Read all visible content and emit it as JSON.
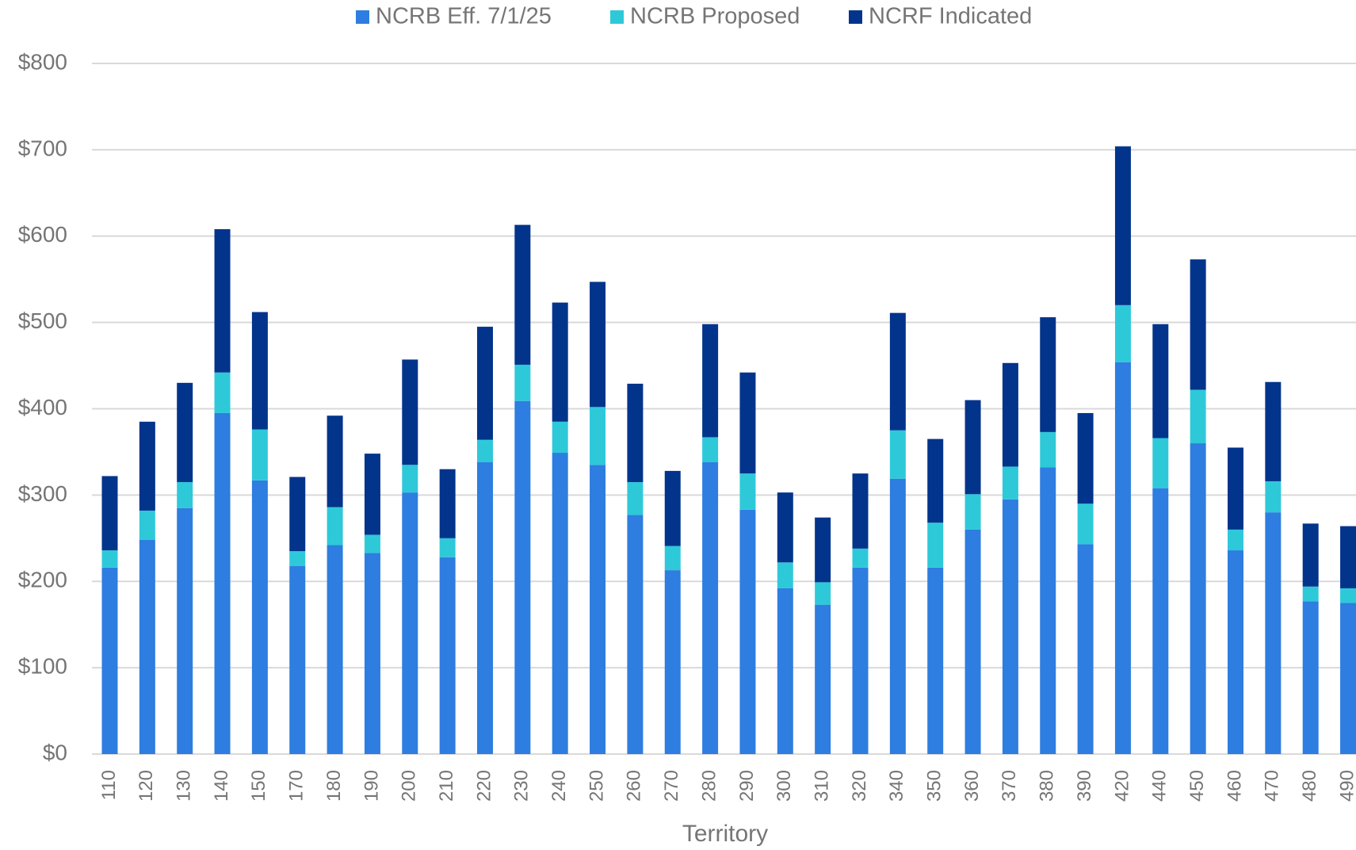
{
  "chart_data": {
    "type": "stacked_bar",
    "x_label": "Territory",
    "categories": [
      "110",
      "120",
      "130",
      "140",
      "150",
      "170",
      "180",
      "190",
      "200",
      "210",
      "220",
      "230",
      "240",
      "250",
      "260",
      "270",
      "280",
      "290",
      "300",
      "310",
      "320",
      "340",
      "350",
      "360",
      "370",
      "380",
      "390",
      "420",
      "440",
      "450",
      "460",
      "470",
      "480",
      "490"
    ],
    "series": [
      {
        "name": "NCRB Eff. 7/1/25",
        "color": "#2e7de0",
        "values": [
          216,
          248,
          285,
          395,
          317,
          218,
          242,
          233,
          303,
          228,
          338,
          409,
          349,
          335,
          277,
          213,
          338,
          283,
          192,
          173,
          216,
          319,
          216,
          260,
          295,
          332,
          243,
          454,
          308,
          360,
          236,
          280,
          177,
          175
        ]
      },
      {
        "name": "NCRB Proposed",
        "color": "#2ec9d9",
        "values": [
          20,
          34,
          30,
          47,
          59,
          17,
          44,
          21,
          32,
          22,
          26,
          42,
          36,
          67,
          38,
          28,
          29,
          42,
          30,
          26,
          22,
          56,
          52,
          41,
          38,
          41,
          47,
          66,
          58,
          62,
          24,
          36,
          17,
          17
        ]
      },
      {
        "name": "NCRF Indicated",
        "color": "#03348c",
        "values": [
          86,
          103,
          115,
          166,
          136,
          86,
          106,
          94,
          122,
          80,
          131,
          162,
          138,
          145,
          114,
          87,
          131,
          117,
          81,
          75,
          87,
          136,
          97,
          109,
          120,
          133,
          105,
          184,
          132,
          151,
          95,
          115,
          73,
          72
        ]
      }
    ],
    "ylim": [
      0,
      800
    ],
    "yticks": [
      {
        "value": 0,
        "label": "$0"
      },
      {
        "value": 100,
        "label": "$100"
      },
      {
        "value": 200,
        "label": "$200"
      },
      {
        "value": 300,
        "label": "$300"
      },
      {
        "value": 400,
        "label": "$400"
      },
      {
        "value": 500,
        "label": "$500"
      },
      {
        "value": 600,
        "label": "$600"
      },
      {
        "value": 700,
        "label": "$700"
      },
      {
        "value": 800,
        "label": "$800"
      }
    ],
    "grid": true,
    "legend": "top"
  }
}
